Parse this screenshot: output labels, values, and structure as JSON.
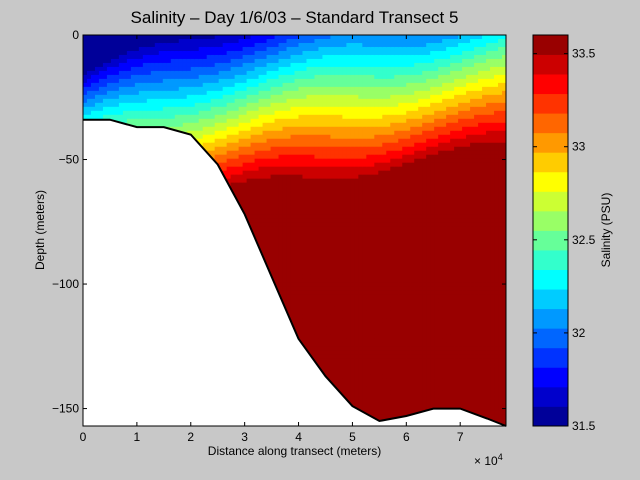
{
  "chart_data": {
    "type": "heatmap",
    "title": "Salinity – Day 1/6/03 – Standard Transect 5",
    "xlabel": "Distance along transect (meters)",
    "x_exponent_label": "× 10",
    "x_exponent_power": "4",
    "ylabel": "Depth (meters)",
    "colorbar_label": "Salinity (PSU)",
    "x_ticks": [
      0,
      1,
      2,
      3,
      4,
      5,
      6,
      7
    ],
    "x_tick_labels": [
      "0",
      "1",
      "2",
      "3",
      "4",
      "5",
      "6",
      "7"
    ],
    "y_ticks": [
      0,
      -50,
      -100,
      -150
    ],
    "y_tick_labels": [
      "0",
      "−50",
      "−100",
      "−150"
    ],
    "colorbar_ticks": [
      31.5,
      32,
      32.5,
      33,
      33.5
    ],
    "colorbar_tick_labels": [
      "31.5",
      "32",
      "32.5",
      "33",
      "33.5"
    ],
    "xlim": [
      0,
      7.85
    ],
    "ylim": [
      -157,
      0
    ],
    "clim": [
      31.5,
      33.6
    ],
    "contour_levels_psu": 20,
    "bottom_profile": {
      "x": [
        0,
        0.5,
        1.0,
        1.5,
        2.0,
        2.5,
        3.0,
        3.5,
        4.0,
        4.5,
        5.0,
        5.5,
        6.0,
        6.5,
        7.0,
        7.5,
        7.85
      ],
      "depth": [
        -34,
        -34,
        -37,
        -37,
        -40,
        -52,
        -72,
        -97,
        -122,
        -137,
        -149,
        -155,
        -153,
        -150,
        -150,
        -154,
        -157
      ]
    },
    "salinity_field": {
      "description": "contoured salinity field above the seabed",
      "colormap": "jet"
    }
  }
}
